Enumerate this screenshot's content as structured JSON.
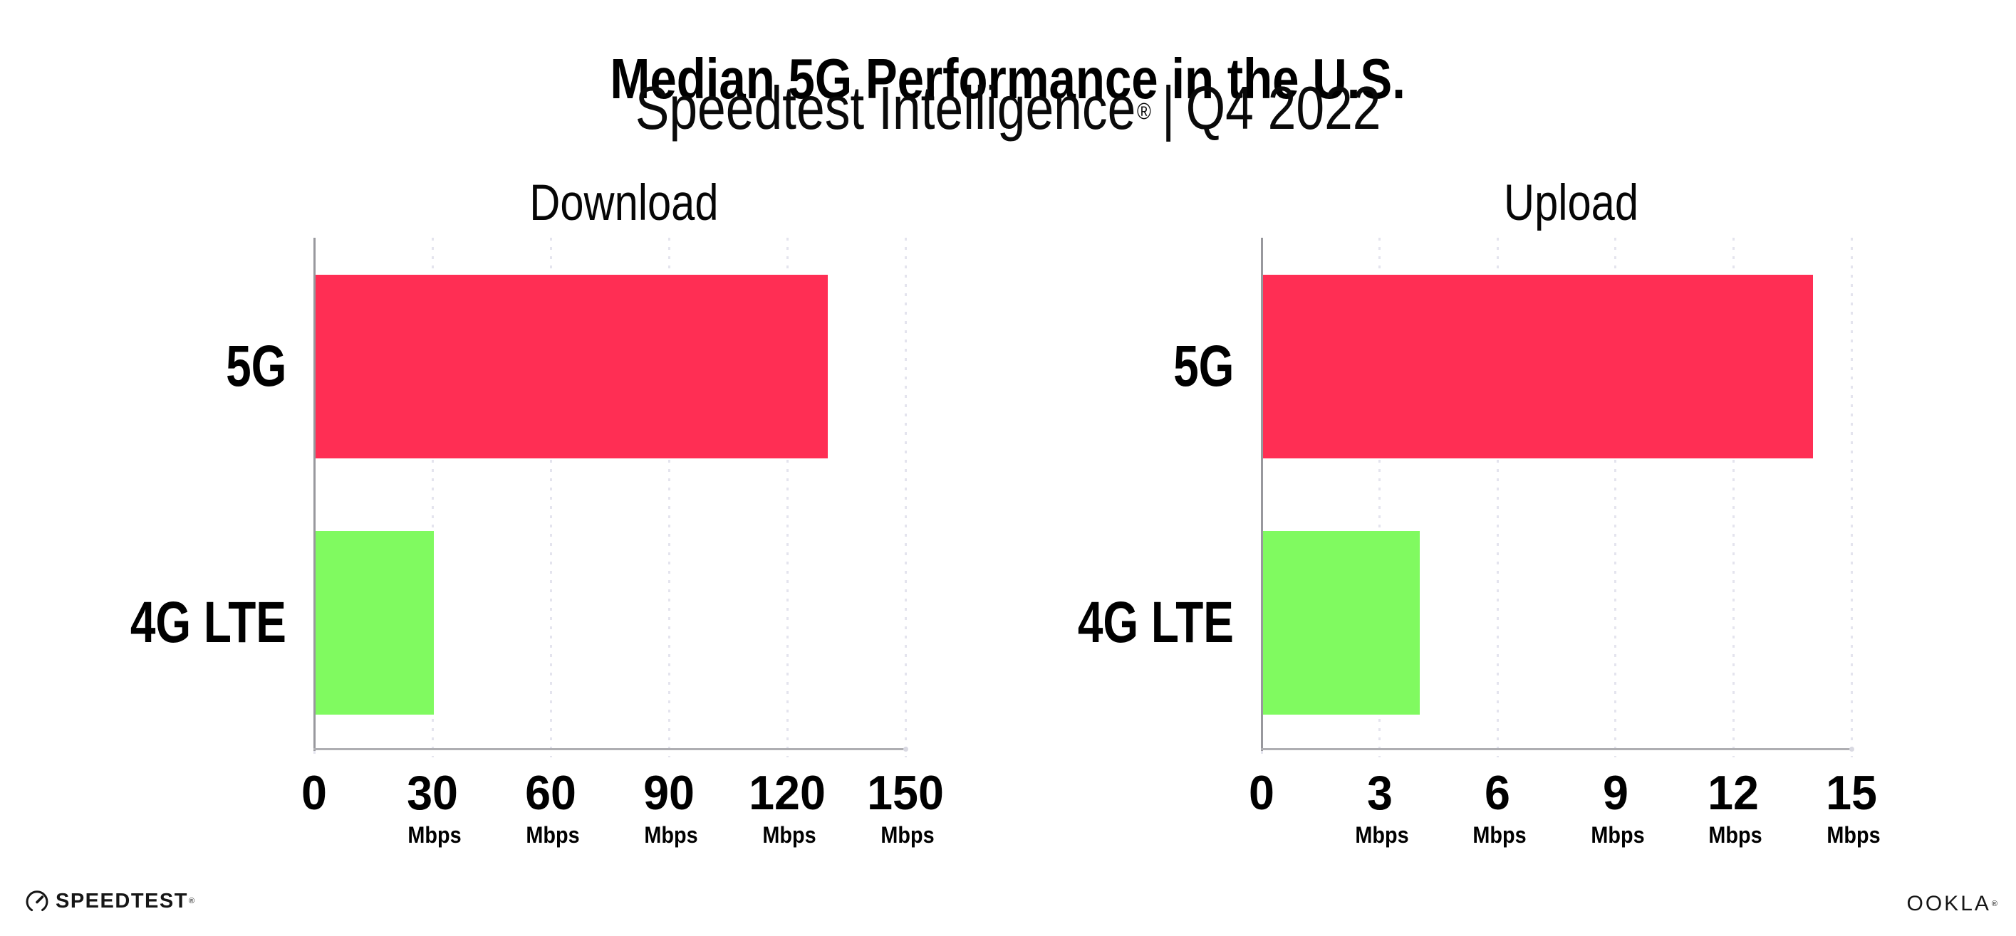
{
  "header": {
    "title": "Median 5G Performance in the U.S.",
    "subtitle_brand": "Speedtest Intelligence",
    "subtitle_mark": "®",
    "subtitle_separator": "|",
    "subtitle_period": "Q4 2022"
  },
  "chart_data": [
    {
      "type": "bar",
      "orientation": "horizontal",
      "title": "Download",
      "categories": [
        "5G",
        "4G LTE"
      ],
      "values": [
        130,
        30
      ],
      "unit": "Mbps",
      "xlabel": "",
      "ylabel": "",
      "xlim": [
        0,
        150
      ],
      "xticks": [
        0,
        30,
        60,
        90,
        120,
        150
      ],
      "grid": "vertical-dotted",
      "legend": "none",
      "bar_colors": [
        "#ff2e54",
        "#80fa60"
      ]
    },
    {
      "type": "bar",
      "orientation": "horizontal",
      "title": "Upload",
      "categories": [
        "5G",
        "4G LTE"
      ],
      "values": [
        14,
        4
      ],
      "unit": "Mbps",
      "xlabel": "",
      "ylabel": "",
      "xlim": [
        0,
        15
      ],
      "xticks": [
        0,
        3,
        6,
        9,
        12,
        15
      ],
      "grid": "vertical-dotted",
      "legend": "none",
      "bar_colors": [
        "#ff2e54",
        "#80fa60"
      ]
    }
  ],
  "colors": {
    "bar_5g": "#ff2e54",
    "bar_4g_lte": "#80fa60",
    "gridline": "#e4e4ee",
    "y_axis": "#98989d",
    "x_axis": "#aeaeb2",
    "text": "#000000",
    "logo": "#161616"
  },
  "footer": {
    "speedtest_label": "SPEEDTEST",
    "speedtest_mark": "®",
    "speedtest_icon": "speedtest-gauge-icon",
    "ookla_label": "OOKLA",
    "ookla_mark": "®"
  }
}
